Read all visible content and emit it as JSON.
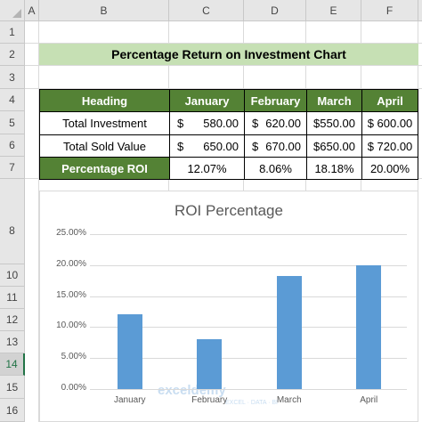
{
  "columns": [
    "A",
    "B",
    "C",
    "D",
    "E",
    "F"
  ],
  "rows": [
    "1",
    "2",
    "3",
    "4",
    "5",
    "6",
    "7",
    "8",
    "10",
    "11",
    "12",
    "13",
    "14",
    "15",
    "16"
  ],
  "active_row": "14",
  "title": "Percentage Return on Investment Chart",
  "table": {
    "headers": [
      "Heading",
      "January",
      "February",
      "March",
      "April"
    ],
    "rows": [
      {
        "label": "Total Investment",
        "values": [
          [
            "$",
            "580.00"
          ],
          [
            "$",
            "620.00"
          ],
          [
            "$550.00"
          ],
          [
            "$ 600.00"
          ]
        ]
      },
      {
        "label": "Total Sold Value",
        "values": [
          [
            "$",
            "650.00"
          ],
          [
            "$",
            "670.00"
          ],
          [
            "$650.00"
          ],
          [
            "$ 720.00"
          ]
        ]
      },
      {
        "label": "Percentage ROI",
        "values": [
          [
            "12.07%"
          ],
          [
            "8.06%"
          ],
          [
            "18.18%"
          ],
          [
            "20.00%"
          ]
        ]
      }
    ]
  },
  "chart_data": {
    "type": "bar",
    "title": "ROI Percentage",
    "categories": [
      "January",
      "February",
      "March",
      "April"
    ],
    "values": [
      12.07,
      8.06,
      18.18,
      20.0
    ],
    "ylim": [
      0,
      25
    ],
    "yticks": [
      "0.00%",
      "5.00%",
      "10.00%",
      "15.00%",
      "20.00%",
      "25.00%"
    ],
    "grid": true,
    "color": "#5b9bd5"
  },
  "watermark": "exceldemy",
  "watermark_sub": "EXCEL · DATA · BI"
}
